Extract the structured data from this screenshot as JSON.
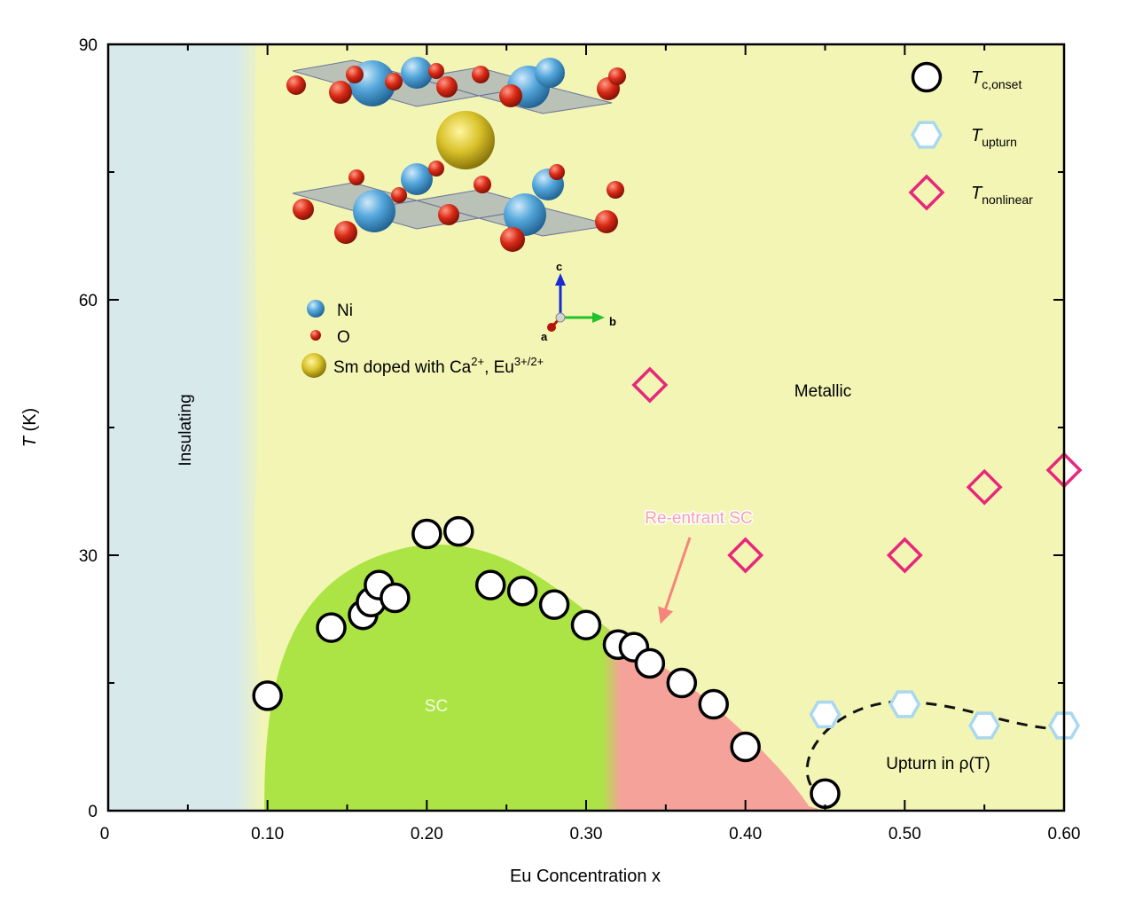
{
  "chart_data": {
    "type": "scatter",
    "xlabel": "Eu Concentration x",
    "ylabel": "T (K)",
    "xlim": [
      0,
      0.6
    ],
    "ylim": [
      0,
      90
    ],
    "xticks": [
      0,
      0.1,
      0.2,
      0.3,
      0.4,
      0.5,
      0.6
    ],
    "xtick_labels": [
      "0",
      "0.10",
      "0.20",
      "0.30",
      "0.40",
      "0.50",
      "0.60"
    ],
    "yticks": [
      0,
      30,
      60,
      90
    ],
    "ytick_labels": [
      "0",
      "30",
      "60",
      "90"
    ],
    "regions": {
      "insulating": "Insulating",
      "metallic": "Metallic",
      "sc": "SC",
      "reentrant": "Re-entrant SC",
      "upturn": "Upturn in ρ(T)"
    },
    "colors": {
      "insulating": "#d8e9ec",
      "metallic": "#f3f5b5",
      "sc": "#ade445",
      "reentrant": "#f4a29a",
      "tc_marker": "#000000",
      "upturn_marker": "#a9d8f0",
      "nonlinear_marker": "#e8267a",
      "reentrant_text": "#f7a1b5",
      "arrow": "#f5857a"
    },
    "series": [
      {
        "name": "T_c,onset",
        "legend_main": "T",
        "legend_sub": "c,onset",
        "marker": "circle",
        "x": [
          0.1,
          0.14,
          0.16,
          0.165,
          0.17,
          0.18,
          0.2,
          0.22,
          0.24,
          0.26,
          0.28,
          0.3,
          0.32,
          0.33,
          0.34,
          0.36,
          0.38,
          0.4,
          0.45
        ],
        "y": [
          13.5,
          21.5,
          23,
          24.5,
          26.5,
          25,
          32.5,
          32.8,
          26.5,
          25.8,
          24.2,
          21.8,
          19.5,
          19.2,
          17.3,
          15,
          12.5,
          7.5,
          2
        ]
      },
      {
        "name": "T_upturn",
        "legend_main": "T",
        "legend_sub": "upturn",
        "marker": "hexagon",
        "x": [
          0.45,
          0.5,
          0.55,
          0.6
        ],
        "y": [
          11.3,
          12.5,
          10,
          10
        ]
      },
      {
        "name": "T_nonlinear",
        "legend_main": "T",
        "legend_sub": "nonlinear",
        "marker": "diamond",
        "x": [
          0.34,
          0.4,
          0.5,
          0.55,
          0.6
        ],
        "y": [
          50,
          30,
          30,
          38,
          40
        ]
      }
    ],
    "inset": {
      "ni_label": "Ni",
      "o_label": "O",
      "sm_label_pre": "Sm doped with Ca",
      "sm_sup1": "2+",
      "sm_label_mid": ", Eu",
      "sm_sup2": "3+/2+",
      "axis_c": "c",
      "axis_b": "b",
      "axis_a": "a"
    }
  }
}
